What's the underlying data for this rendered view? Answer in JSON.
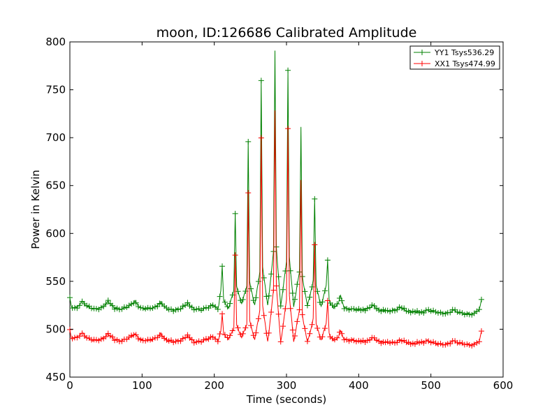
{
  "chart_data": {
    "type": "line",
    "title": "moon, ID:126686 Calibrated Amplitude",
    "xlabel": "Time (seconds)",
    "ylabel": "Power in Kelvin",
    "xlim": [
      0,
      600
    ],
    "ylim": [
      450,
      800
    ],
    "xticks": [
      "0",
      "100",
      "200",
      "300",
      "400",
      "500",
      "600"
    ],
    "yticks": [
      "450",
      "500",
      "550",
      "600",
      "650",
      "700",
      "750",
      "800"
    ],
    "legend_position": "top-right",
    "grid": false,
    "series": [
      {
        "name": "YY1 Tsys536.29",
        "color": "#008000",
        "marker": "+",
        "baseline": 521,
        "points": [
          [
            0,
            533
          ],
          [
            2,
            524
          ],
          [
            5,
            522
          ],
          [
            10,
            523
          ],
          [
            17,
            529
          ],
          [
            25,
            523
          ],
          [
            35,
            521
          ],
          [
            45,
            523
          ],
          [
            53,
            529
          ],
          [
            62,
            522
          ],
          [
            72,
            521
          ],
          [
            82,
            524
          ],
          [
            90,
            529
          ],
          [
            98,
            522
          ],
          [
            108,
            521
          ],
          [
            118,
            523
          ],
          [
            126,
            528
          ],
          [
            134,
            521
          ],
          [
            145,
            520
          ],
          [
            155,
            522
          ],
          [
            163,
            527
          ],
          [
            172,
            521
          ],
          [
            182,
            520
          ],
          [
            192,
            523
          ],
          [
            198,
            526
          ],
          [
            205,
            520
          ],
          [
            209,
            540
          ],
          [
            211,
            565
          ],
          [
            213,
            530
          ],
          [
            220,
            522
          ],
          [
            227,
            540
          ],
          [
            229,
            621
          ],
          [
            231,
            545
          ],
          [
            238,
            526
          ],
          [
            245,
            545
          ],
          [
            247,
            697
          ],
          [
            249,
            550
          ],
          [
            256,
            524
          ],
          [
            263,
            560
          ],
          [
            265,
            761
          ],
          [
            267,
            565
          ],
          [
            274,
            524
          ],
          [
            282,
            580
          ],
          [
            284,
            791
          ],
          [
            286,
            585
          ],
          [
            292,
            524
          ],
          [
            300,
            570
          ],
          [
            302,
            771
          ],
          [
            304,
            575
          ],
          [
            310,
            524
          ],
          [
            318,
            560
          ],
          [
            320,
            712
          ],
          [
            322,
            555
          ],
          [
            329,
            524
          ],
          [
            337,
            550
          ],
          [
            339,
            636
          ],
          [
            341,
            545
          ],
          [
            348,
            524
          ],
          [
            355,
            545
          ],
          [
            357,
            572
          ],
          [
            359,
            530
          ],
          [
            365,
            522
          ],
          [
            372,
            528
          ],
          [
            375,
            535
          ],
          [
            380,
            522
          ],
          [
            390,
            521
          ],
          [
            400,
            520
          ],
          [
            412,
            521
          ],
          [
            420,
            525
          ],
          [
            428,
            520
          ],
          [
            440,
            519
          ],
          [
            450,
            520
          ],
          [
            458,
            523
          ],
          [
            466,
            519
          ],
          [
            478,
            518
          ],
          [
            490,
            518
          ],
          [
            495,
            520
          ],
          [
            505,
            518
          ],
          [
            515,
            517
          ],
          [
            525,
            517
          ],
          [
            530,
            520
          ],
          [
            540,
            517
          ],
          [
            550,
            516
          ],
          [
            560,
            516
          ],
          [
            567,
            521
          ],
          [
            570,
            531
          ]
        ]
      },
      {
        "name": "XX1 Tsys474.99",
        "color": "#ff0000",
        "marker": "+",
        "baseline": 489,
        "points": [
          [
            0,
            499
          ],
          [
            2,
            491
          ],
          [
            5,
            490
          ],
          [
            10,
            492
          ],
          [
            17,
            496
          ],
          [
            25,
            490
          ],
          [
            35,
            488
          ],
          [
            45,
            490
          ],
          [
            53,
            495
          ],
          [
            62,
            489
          ],
          [
            72,
            488
          ],
          [
            82,
            491
          ],
          [
            90,
            495
          ],
          [
            98,
            489
          ],
          [
            108,
            488
          ],
          [
            118,
            490
          ],
          [
            126,
            495
          ],
          [
            134,
            488
          ],
          [
            145,
            487
          ],
          [
            155,
            489
          ],
          [
            163,
            493
          ],
          [
            172,
            487
          ],
          [
            182,
            487
          ],
          [
            192,
            490
          ],
          [
            198,
            493
          ],
          [
            205,
            487
          ],
          [
            209,
            498
          ],
          [
            211,
            515
          ],
          [
            213,
            495
          ],
          [
            220,
            490
          ],
          [
            227,
            500
          ],
          [
            229,
            577
          ],
          [
            231,
            505
          ],
          [
            238,
            491
          ],
          [
            245,
            505
          ],
          [
            247,
            643
          ],
          [
            249,
            510
          ],
          [
            256,
            488
          ],
          [
            263,
            520
          ],
          [
            265,
            701
          ],
          [
            267,
            525
          ],
          [
            274,
            486
          ],
          [
            282,
            540
          ],
          [
            284,
            728
          ],
          [
            286,
            545
          ],
          [
            292,
            486
          ],
          [
            300,
            530
          ],
          [
            302,
            710
          ],
          [
            304,
            535
          ],
          [
            310,
            487
          ],
          [
            318,
            520
          ],
          [
            320,
            657
          ],
          [
            322,
            515
          ],
          [
            329,
            486
          ],
          [
            337,
            510
          ],
          [
            339,
            588
          ],
          [
            341,
            505
          ],
          [
            348,
            489
          ],
          [
            355,
            505
          ],
          [
            357,
            530
          ],
          [
            359,
            495
          ],
          [
            365,
            488
          ],
          [
            372,
            492
          ],
          [
            375,
            499
          ],
          [
            380,
            489
          ],
          [
            390,
            489
          ],
          [
            400,
            487
          ],
          [
            412,
            488
          ],
          [
            420,
            491
          ],
          [
            428,
            487
          ],
          [
            440,
            486
          ],
          [
            450,
            486
          ],
          [
            458,
            489
          ],
          [
            466,
            486
          ],
          [
            478,
            485
          ],
          [
            490,
            487
          ],
          [
            495,
            488
          ],
          [
            505,
            485
          ],
          [
            515,
            484
          ],
          [
            525,
            485
          ],
          [
            530,
            488
          ],
          [
            540,
            485
          ],
          [
            550,
            484
          ],
          [
            560,
            484
          ],
          [
            567,
            488
          ],
          [
            570,
            498
          ]
        ]
      }
    ]
  }
}
